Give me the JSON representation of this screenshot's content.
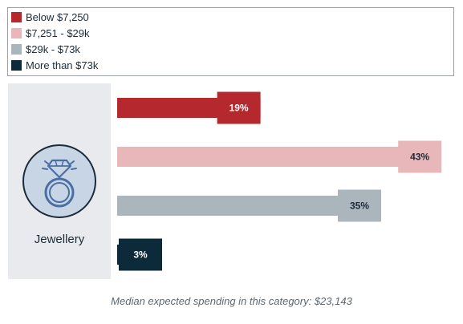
{
  "chart_data": {
    "type": "bar",
    "orientation": "horizontal",
    "categories": [
      "Jewellery"
    ],
    "series": [
      {
        "name": "Below $7,250",
        "values": [
          19
        ],
        "label": "19%",
        "color": "#b5282e"
      },
      {
        "name": "$7,251 - $29k",
        "values": [
          43
        ],
        "label": "43%",
        "color": "#e8b7b9"
      },
      {
        "name": "$29k - $73k",
        "values": [
          35
        ],
        "label": "35%",
        "color": "#aab5bc"
      },
      {
        "name": "More than $73k",
        "values": [
          3
        ],
        "label": "3%",
        "color": "#0d2a3a"
      }
    ],
    "unit": "%",
    "legend_position": "top",
    "grid": false
  },
  "category": {
    "label": "Jewellery",
    "icon": "ring-icon"
  },
  "footnote": "Median expected spending in this category: $23,143"
}
